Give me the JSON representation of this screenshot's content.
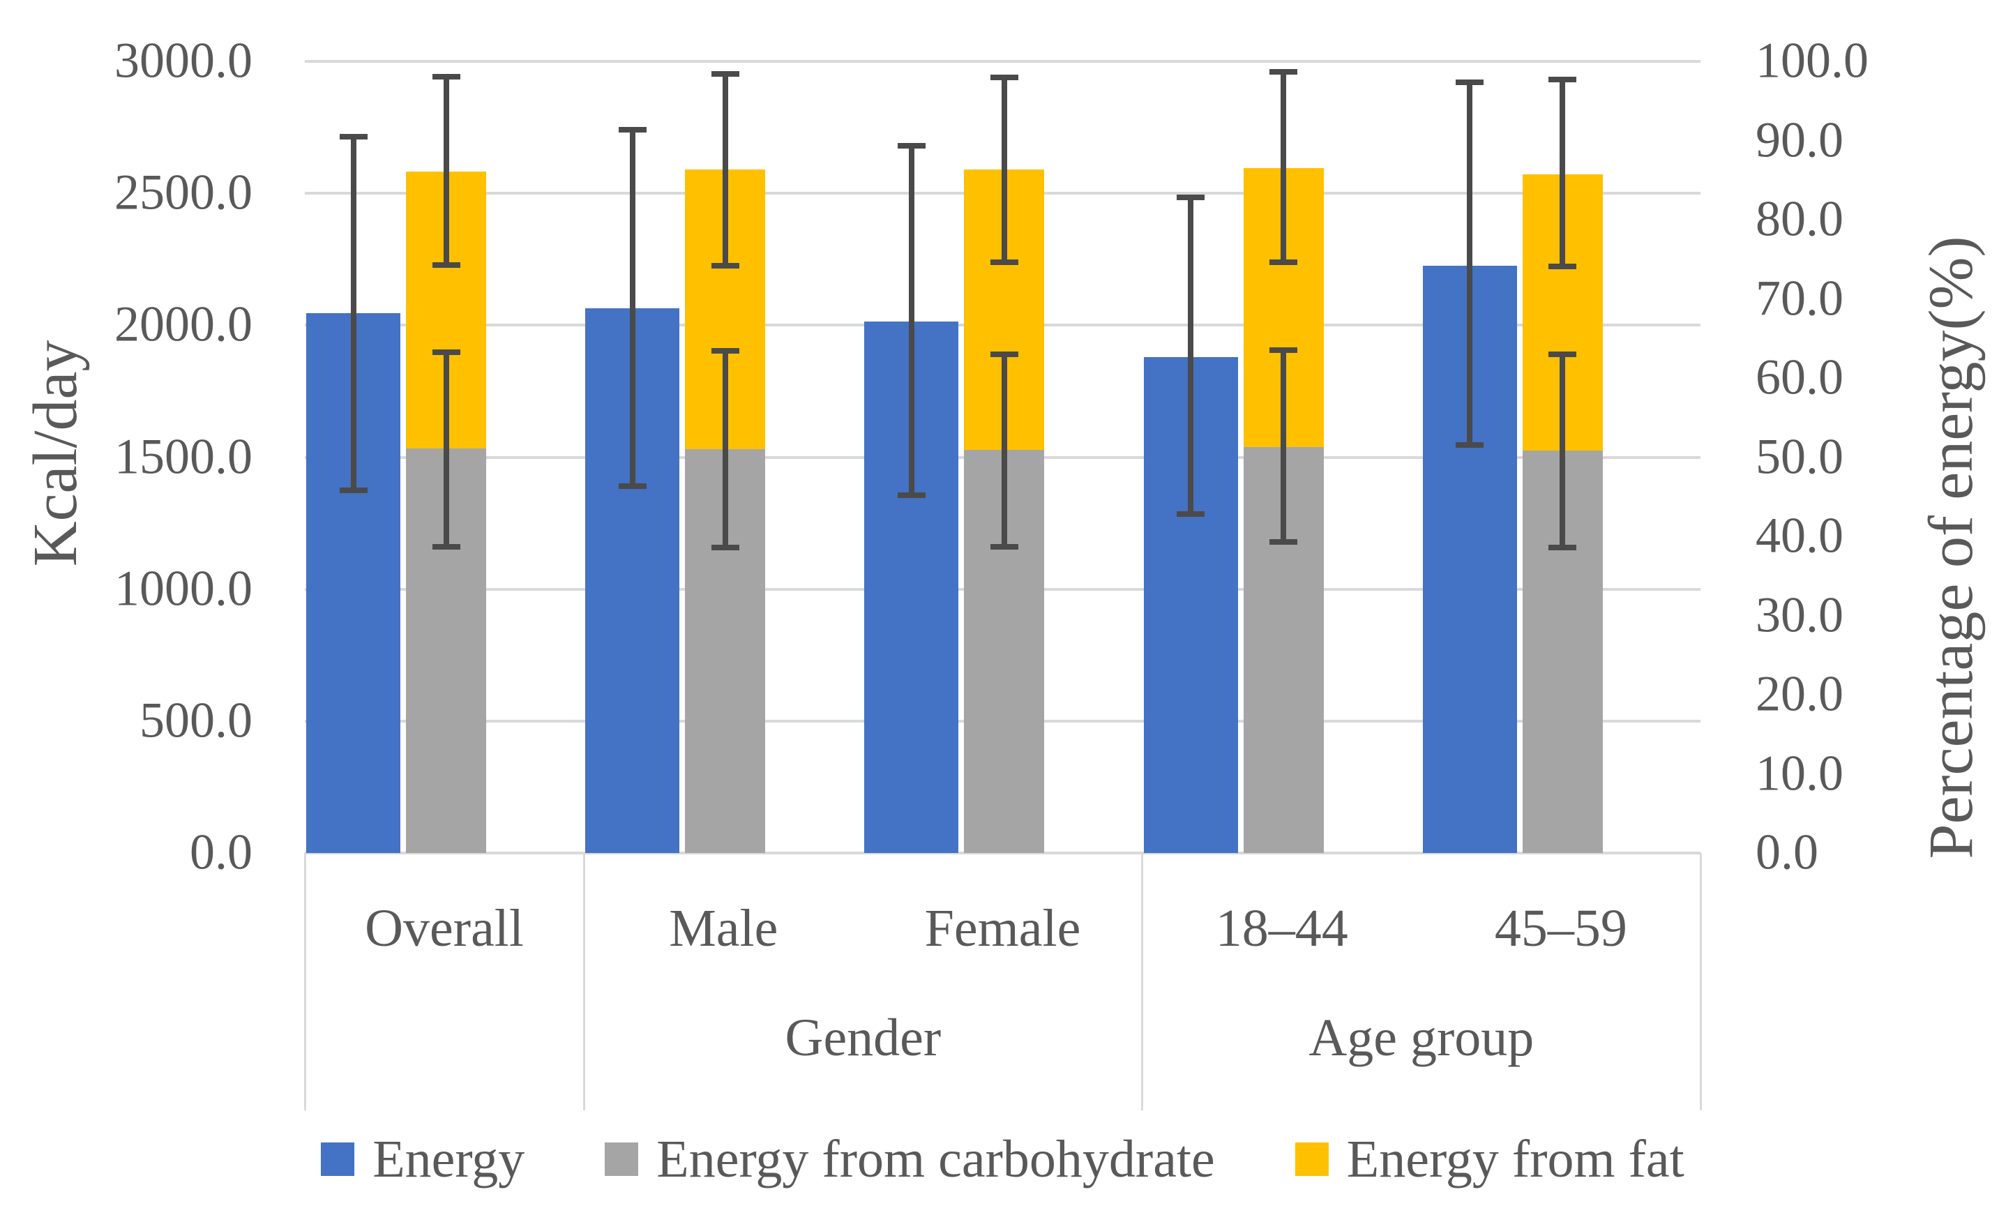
{
  "chart_data": {
    "type": "bar",
    "title": "",
    "categories": [
      "Overall",
      "Male",
      "Female",
      "18–44",
      "45–59"
    ],
    "group_labels": [
      {
        "label": "Gender",
        "from": 1,
        "to": 2
      },
      {
        "label": "Age group",
        "from": 3,
        "to": 4
      }
    ],
    "left_axis": {
      "label": "Kcal/day",
      "min": 0,
      "max": 3000,
      "tick_step": 500,
      "ticks": [
        "0.0",
        "500.0",
        "1000.0",
        "1500.0",
        "2000.0",
        "2500.0",
        "3000.0"
      ]
    },
    "right_axis": {
      "label": "Percentage of energy(%)",
      "min": 0,
      "max": 100,
      "tick_step": 10,
      "ticks": [
        "0.0",
        "10.0",
        "20.0",
        "30.0",
        "40.0",
        "50.0",
        "60.0",
        "70.0",
        "80.0",
        "90.0",
        "100.0"
      ]
    },
    "grid": true,
    "legend_position": "bottom",
    "series": [
      {
        "name": "Energy",
        "axis": "left",
        "unit": "kcal/day",
        "color": "#4472C4",
        "values": [
          2045,
          2065,
          2015,
          1880,
          2225
        ],
        "error_low": [
          1375,
          1390,
          1355,
          1285,
          1545
        ],
        "error_high": [
          2715,
          2740,
          2680,
          2485,
          2920
        ]
      },
      {
        "name": "Energy from carbohydrate",
        "axis": "right",
        "unit": "%",
        "color": "#A5A5A5",
        "stack": "energy-pct",
        "values": [
          51.1,
          51.0,
          50.9,
          51.3,
          50.8
        ],
        "error_low": [
          38.7,
          38.6,
          38.7,
          39.3,
          38.6
        ],
        "error_high": [
          63.3,
          63.4,
          63.0,
          63.5,
          63.0
        ]
      },
      {
        "name": "Energy from fat",
        "axis": "right",
        "unit": "%",
        "color": "#FFC000",
        "stack": "energy-pct",
        "values": [
          35.0,
          35.3,
          35.4,
          35.2,
          34.9
        ],
        "stack_top": [
          86.1,
          86.3,
          86.3,
          86.5,
          85.7
        ],
        "error_low": [
          74.3,
          74.2,
          74.6,
          74.6,
          74.1
        ],
        "error_high": [
          98.1,
          98.4,
          98.0,
          98.7,
          97.7
        ]
      }
    ],
    "error_bar_color": "#4a4a4a",
    "gridline_color": "#d9d9d9",
    "text_color": "#595959"
  }
}
